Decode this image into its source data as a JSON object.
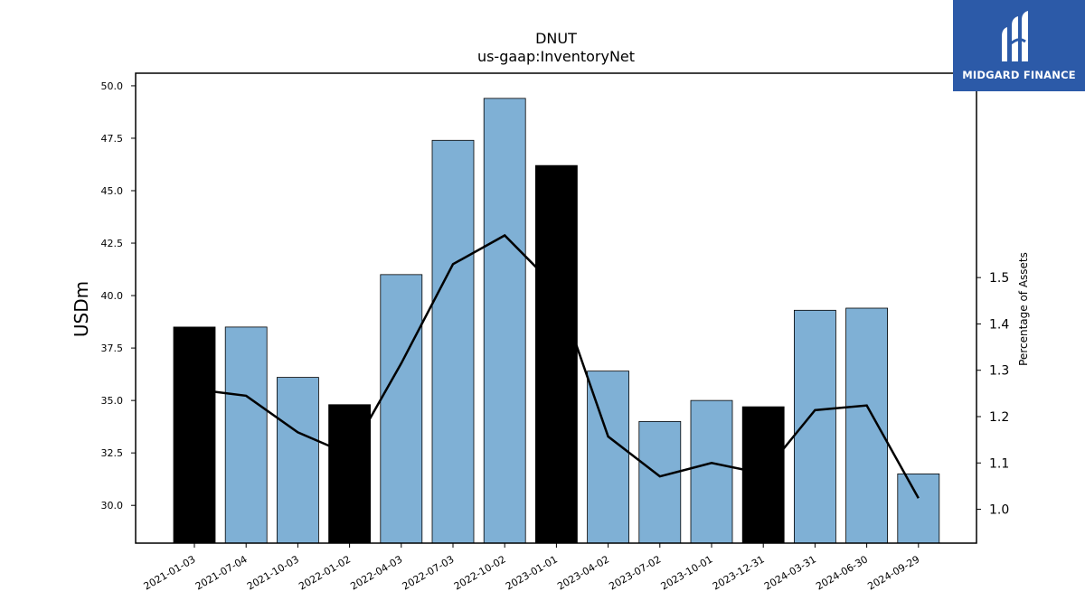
{
  "logo": {
    "text": "MIDGARD FINANCE"
  },
  "chart_data": {
    "type": "bar",
    "title": "DNUT",
    "subtitle": "us-gaap:InventoryNet",
    "ylabel": "USDm",
    "y2label": "Percentage of Assets",
    "ylim": [
      28.2,
      50.6
    ],
    "y2lim": [
      0.927,
      1.941
    ],
    "yticks": [
      "30.0",
      "32.5",
      "35.0",
      "37.5",
      "40.0",
      "42.5",
      "45.0",
      "47.5",
      "50.0"
    ],
    "y2ticks": [
      "1.0",
      "1.1",
      "1.2",
      "1.3",
      "1.4",
      "1.5"
    ],
    "categories": [
      "2021-01-03",
      "2021-07-04",
      "2021-10-03",
      "2022-01-02",
      "2022-04-03",
      "2022-07-03",
      "2022-10-02",
      "2023-01-01",
      "2023-04-02",
      "2023-07-02",
      "2023-10-01",
      "2023-12-31",
      "2024-03-31",
      "2024-06-30",
      "2024-09-29"
    ],
    "series": [
      {
        "type": "bar",
        "values": [
          38.5,
          38.5,
          36.1,
          34.8,
          41.0,
          47.4,
          49.4,
          46.2,
          36.4,
          34.0,
          35.0,
          34.7,
          39.3,
          39.4,
          31.5
        ]
      },
      {
        "type": "line",
        "axis": "right",
        "values": [
          1.259,
          1.245,
          1.166,
          1.118,
          1.315,
          1.529,
          1.591,
          1.478,
          1.157,
          1.071,
          1.1,
          1.077,
          1.214,
          1.224,
          1.024
        ]
      }
    ],
    "highlighted": [
      true,
      false,
      false,
      true,
      false,
      false,
      false,
      true,
      false,
      false,
      false,
      true,
      false,
      false,
      false
    ],
    "colors": {
      "bar": "#7fb0d5",
      "highlight": "#000000",
      "line": "#000000"
    }
  }
}
